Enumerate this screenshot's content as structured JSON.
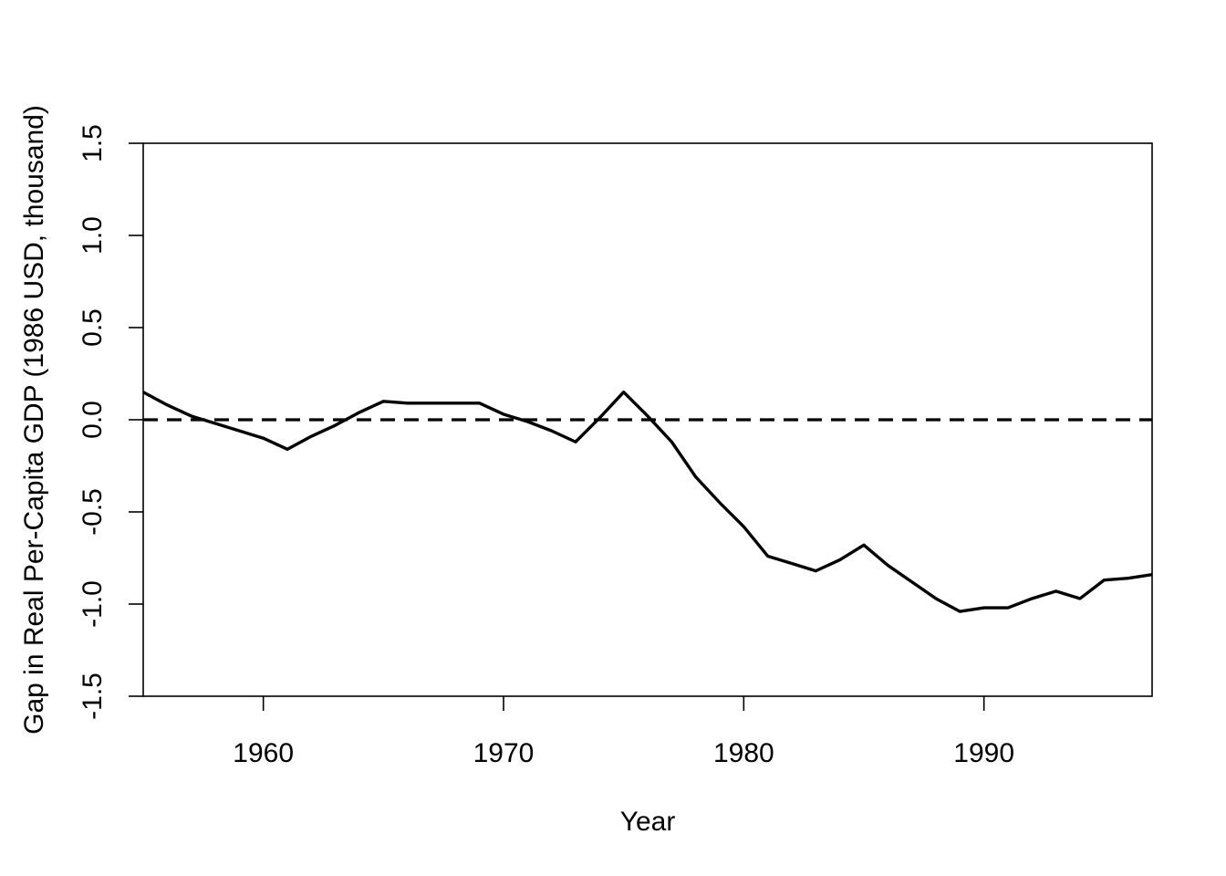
{
  "chart_data": {
    "type": "line",
    "title": "",
    "xlabel": "Year",
    "ylabel": "Gap in Real Per-Capita GDP (1986 USD, thousand)",
    "xlim": [
      1955,
      1997
    ],
    "ylim": [
      -1.5,
      1.5
    ],
    "x_ticks": [
      1960,
      1970,
      1980,
      1990
    ],
    "x_tick_labels": [
      "1960",
      "1970",
      "1980",
      "1990"
    ],
    "y_ticks": [
      -1.5,
      -1.0,
      -0.5,
      0.0,
      0.5,
      1.0,
      1.5
    ],
    "y_tick_labels": [
      "-1.5",
      "-1.0",
      "-0.5",
      "0.0",
      "0.5",
      "1.0",
      "1.5"
    ],
    "grid": false,
    "legend": "none",
    "series": [
      {
        "style": "solid",
        "color": "#000000",
        "x": [
          1955,
          1956,
          1957,
          1958,
          1959,
          1960,
          1961,
          1962,
          1963,
          1964,
          1965,
          1966,
          1967,
          1968,
          1969,
          1970,
          1971,
          1972,
          1973,
          1974,
          1975,
          1976,
          1977,
          1978,
          1979,
          1980,
          1981,
          1982,
          1983,
          1984,
          1985,
          1986,
          1987,
          1988,
          1989,
          1990,
          1991,
          1992,
          1993,
          1994,
          1995,
          1996,
          1997
        ],
        "values": [
          0.15,
          0.08,
          0.02,
          -0.02,
          -0.06,
          -0.1,
          -0.16,
          -0.09,
          -0.03,
          0.04,
          0.1,
          0.09,
          0.09,
          0.09,
          0.09,
          0.03,
          -0.01,
          -0.06,
          -0.12,
          0.01,
          0.15,
          0.02,
          -0.12,
          -0.31,
          -0.45,
          -0.58,
          -0.74,
          -0.78,
          -0.82,
          -0.76,
          -0.68,
          -0.79,
          -0.88,
          -0.97,
          -1.04,
          -1.02,
          -1.02,
          -0.97,
          -0.93,
          -0.97,
          -0.87,
          -0.86,
          -0.84
        ]
      }
    ],
    "reference_lines": [
      {
        "y": 0.0,
        "style": "dashed",
        "color": "#000000"
      }
    ]
  }
}
